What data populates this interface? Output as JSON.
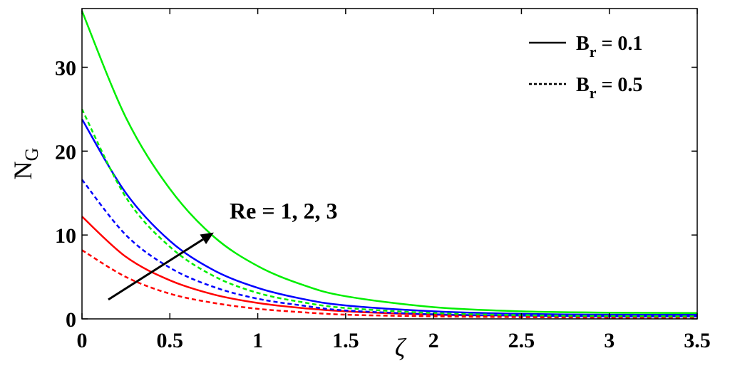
{
  "chart_data": {
    "type": "line",
    "xlabel": "ζ",
    "ylabel": {
      "main": "N",
      "sub": "G"
    },
    "xlim": [
      0,
      3.5
    ],
    "ylim": [
      0,
      37
    ],
    "xticks": [
      0,
      0.5,
      1,
      1.5,
      2,
      2.5,
      3,
      3.5
    ],
    "xtick_labels": [
      "0",
      "0.5",
      "1",
      "1.5",
      "2",
      "2.5",
      "3",
      "3.5"
    ],
    "yticks": [
      0,
      10,
      20,
      30
    ],
    "ytick_labels": [
      "0",
      "10",
      "20",
      "30"
    ],
    "grid": false,
    "legend": {
      "position": "top-right",
      "entries": [
        {
          "main": "B",
          "sub": "r",
          "rest": " = 0.1",
          "style": "solid"
        },
        {
          "main": "B",
          "sub": "r",
          "rest": " = 0.5",
          "style": "dashed"
        }
      ]
    },
    "annotation": {
      "text": "Re = 1, 2, 3",
      "arrow_from": [
        0.15,
        2.3
      ],
      "arrow_to": [
        0.75,
        10.3
      ]
    },
    "series": [
      {
        "color": "#ff0000",
        "style": "solid",
        "x": [
          0,
          0.25,
          0.5,
          0.75,
          1,
          1.25,
          1.5,
          2,
          2.5,
          3,
          3.5
        ],
        "y": [
          12.2,
          7.4,
          4.6,
          2.9,
          1.9,
          1.3,
          0.9,
          0.5,
          0.4,
          0.35,
          0.35
        ]
      },
      {
        "color": "#ff0000",
        "style": "dashed",
        "x": [
          0,
          0.25,
          0.5,
          0.75,
          1,
          1.25,
          1.5,
          2,
          2.5,
          3,
          3.5
        ],
        "y": [
          8.2,
          5.0,
          3.0,
          1.9,
          1.2,
          0.8,
          0.5,
          0.3,
          0.2,
          0.15,
          0.15
        ]
      },
      {
        "color": "#0000ff",
        "style": "solid",
        "x": [
          0,
          0.25,
          0.5,
          0.75,
          1,
          1.25,
          1.5,
          2,
          2.5,
          3,
          3.5
        ],
        "y": [
          23.8,
          15.0,
          9.3,
          5.8,
          3.7,
          2.4,
          1.6,
          0.9,
          0.6,
          0.5,
          0.5
        ]
      },
      {
        "color": "#0000ff",
        "style": "dashed",
        "x": [
          0,
          0.25,
          0.5,
          0.75,
          1,
          1.25,
          1.5,
          2,
          2.5,
          3,
          3.5
        ],
        "y": [
          16.6,
          10.0,
          6.1,
          3.8,
          2.4,
          1.6,
          1.0,
          0.55,
          0.4,
          0.3,
          0.3
        ]
      },
      {
        "color": "#00ee00",
        "style": "solid",
        "x": [
          0,
          0.25,
          0.5,
          0.75,
          1,
          1.25,
          1.5,
          2,
          2.5,
          3,
          3.5
        ],
        "y": [
          36.7,
          24.0,
          15.5,
          9.8,
          6.3,
          4.1,
          2.7,
          1.4,
          0.9,
          0.75,
          0.7
        ]
      },
      {
        "color": "#00ee00",
        "style": "dashed",
        "x": [
          0,
          0.25,
          0.5,
          0.75,
          1,
          1.25,
          1.5,
          2,
          2.5,
          3,
          3.5
        ],
        "y": [
          25.0,
          14.5,
          8.6,
          5.1,
          3.1,
          2.0,
          1.3,
          0.7,
          0.45,
          0.35,
          0.3
        ]
      }
    ]
  }
}
